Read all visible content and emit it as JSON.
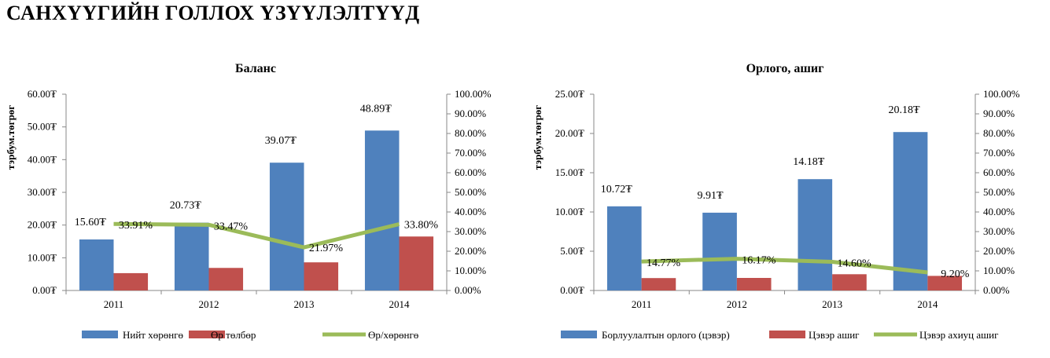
{
  "page_title": "САНХҮҮГИЙН ГОЛЛОХ ҮЗҮҮЛЭЛТҮҮД",
  "colors": {
    "blue": "#4F81BD",
    "red": "#C0504D",
    "green": "#9BBB59"
  },
  "chart_data": [
    {
      "type": "bar",
      "title": "Баланс",
      "ylabel": "тэрбум.төгрөг",
      "categories": [
        "2011",
        "2012",
        "2013",
        "2014"
      ],
      "ylim": [
        0,
        60
      ],
      "y_ticks": [
        "0.00₮",
        "10.00₮",
        "20.00₮",
        "30.00₮",
        "40.00₮",
        "50.00₮",
        "60.00₮"
      ],
      "y2lim": [
        0,
        100
      ],
      "y2_ticks": [
        "0.00%",
        "10.00%",
        "20.00%",
        "30.00%",
        "40.00%",
        "50.00%",
        "60.00%",
        "70.00%",
        "80.00%",
        "90.00%",
        "100.00%"
      ],
      "legend_position": "bottom",
      "grid": false,
      "series": [
        {
          "name": "Нийт хөрөнгө",
          "type": "bar",
          "color": "#4F81BD",
          "values": [
            15.6,
            20.73,
            39.07,
            48.89
          ],
          "labels": [
            "15.60₮",
            "20.73₮",
            "39.07₮",
            "48.89₮"
          ]
        },
        {
          "name": "Өр төлбөр",
          "type": "bar",
          "color": "#C0504D",
          "values": [
            5.3,
            6.9,
            8.6,
            16.5
          ]
        },
        {
          "name": "Өр/хөрөнгө",
          "type": "line",
          "axis": "secondary",
          "color": "#9BBB59",
          "values": [
            33.91,
            33.47,
            21.97,
            33.8
          ],
          "labels": [
            "33.91%",
            "33.47%",
            "21.97%",
            "33.80%"
          ]
        }
      ]
    },
    {
      "type": "bar",
      "title": "Орлого, ашиг",
      "ylabel": "тэрбум.төгрөг",
      "categories": [
        "2011",
        "2012",
        "2013",
        "2014"
      ],
      "ylim": [
        0,
        25
      ],
      "y_ticks": [
        "0.00₮",
        "5.00₮",
        "10.00₮",
        "15.00₮",
        "20.00₮",
        "25.00₮"
      ],
      "y2lim": [
        0,
        100
      ],
      "y2_ticks": [
        "0.00%",
        "10.00%",
        "20.00%",
        "30.00%",
        "40.00%",
        "50.00%",
        "60.00%",
        "70.00%",
        "80.00%",
        "90.00%",
        "100.00%"
      ],
      "legend_position": "bottom",
      "grid": false,
      "series": [
        {
          "name": "Борлуулалтын орлого (цэвэр)",
          "type": "bar",
          "color": "#4F81BD",
          "values": [
            10.72,
            9.91,
            14.18,
            20.18
          ],
          "labels": [
            "10.72₮",
            "9.91₮",
            "14.18₮",
            "20.18₮"
          ]
        },
        {
          "name": "Цэвэр ашиг",
          "type": "bar",
          "color": "#C0504D",
          "values": [
            1.58,
            1.6,
            2.07,
            1.86
          ]
        },
        {
          "name": "Цэвэр ахиуц ашиг",
          "type": "line",
          "axis": "secondary",
          "color": "#9BBB59",
          "values": [
            14.77,
            16.17,
            14.6,
            9.2
          ],
          "labels": [
            "14.77%",
            "16.17%",
            "14.60%",
            "9.20%"
          ]
        }
      ]
    }
  ]
}
